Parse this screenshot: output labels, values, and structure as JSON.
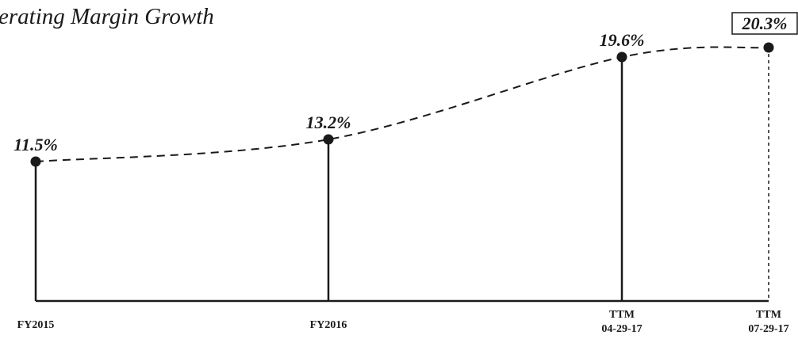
{
  "chart_data": {
    "type": "line",
    "title": "erating Margin Growth",
    "categories": [
      [
        "FY2015"
      ],
      [
        "FY2016"
      ],
      [
        "TTM",
        "04-29-17"
      ],
      [
        "TTM",
        "07-29-17"
      ]
    ],
    "series": [
      {
        "values": [
          11.5,
          13.2,
          19.6,
          20.3
        ],
        "labels": [
          "11.5%",
          "13.2%",
          "19.6%",
          "20.3%"
        ]
      }
    ],
    "highlighted_point_index": 3,
    "line_style": "dashed",
    "grid": false,
    "legend": "none",
    "ylim": [
      0,
      20.3
    ],
    "colors": {
      "ink": "#1a1a1a",
      "background": "#ffffff"
    }
  }
}
